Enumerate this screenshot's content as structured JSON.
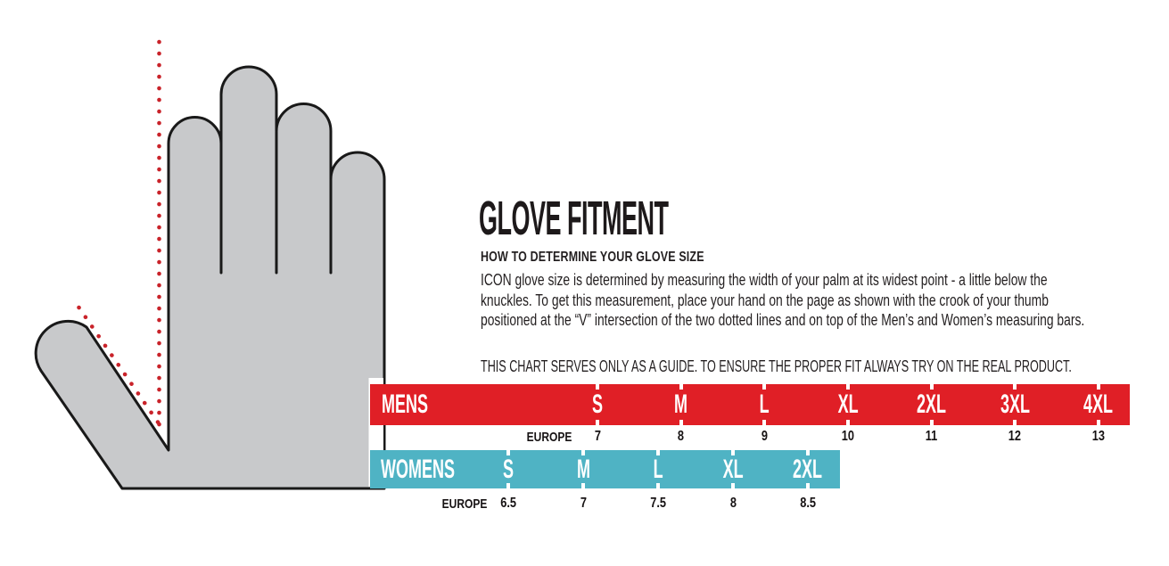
{
  "title": "GLOVE FITMENT",
  "how_to": {
    "heading": "HOW TO DETERMINE YOUR GLOVE SIZE",
    "body_lines": [
      "ICON glove size is determined by measuring the width of your palm at its widest point - a little below the",
      "knuckles. To get this measurement, place your hand on the page as shown with the crook of your thumb",
      "positioned at the “V” intersection of the two dotted lines and on top of the Men’s and Women’s measuring bars."
    ],
    "disclaimer": "THIS CHART SERVES ONLY AS A GUIDE. TO ENSURE THE PROPER FIT ALWAYS TRY ON THE REAL PRODUCT."
  },
  "size_chart": {
    "region_label": "EUROPE",
    "mens": {
      "label": "MENS",
      "bar_color": "#e01f26",
      "sizes": [
        {
          "size": "S",
          "europe": "7"
        },
        {
          "size": "M",
          "europe": "8"
        },
        {
          "size": "L",
          "europe": "9"
        },
        {
          "size": "XL",
          "europe": "10"
        },
        {
          "size": "2XL",
          "europe": "11"
        },
        {
          "size": "3XL",
          "europe": "12"
        },
        {
          "size": "4XL",
          "europe": "13"
        }
      ]
    },
    "womens": {
      "label": "WOMENS",
      "bar_color": "#4fb3c4",
      "sizes": [
        {
          "size": "S",
          "europe": "6.5"
        },
        {
          "size": "M",
          "europe": "7"
        },
        {
          "size": "L",
          "europe": "7.5"
        },
        {
          "size": "XL",
          "europe": "8"
        },
        {
          "size": "2XL",
          "europe": "8.5"
        }
      ]
    }
  },
  "hand_diagram": {
    "fill_color": "#c8c9cb",
    "outline_color": "#191919",
    "dotted_line_color": "#c9232a"
  }
}
